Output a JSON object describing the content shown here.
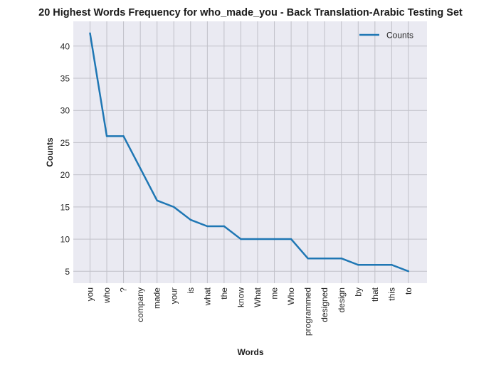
{
  "chart_data": {
    "type": "line",
    "title": "20 Highest Words Frequency for who_made_you - Back Translation-Arabic Testing Set",
    "xlabel": "Words",
    "ylabel": "Counts",
    "categories": [
      "you",
      "who",
      "?",
      "company",
      "made",
      "your",
      "is",
      "what",
      "the",
      "know",
      "What",
      "me",
      "Who",
      "programmed",
      "designed",
      "design",
      "by",
      "that",
      "this",
      "to"
    ],
    "series": [
      {
        "name": "Counts",
        "color": "#1f77b4",
        "values": [
          42,
          26,
          26,
          21,
          16,
          15,
          13,
          12,
          12,
          10,
          10,
          10,
          10,
          7,
          7,
          7,
          6,
          6,
          6,
          5
        ]
      }
    ],
    "yticks": [
      5,
      10,
      15,
      20,
      25,
      30,
      35,
      40
    ],
    "ylim": [
      3.15,
      43.85
    ],
    "grid": true,
    "legend": "top-right",
    "style": {
      "background": "#eaeaf2",
      "grid_color": "#c0c0c8"
    }
  }
}
